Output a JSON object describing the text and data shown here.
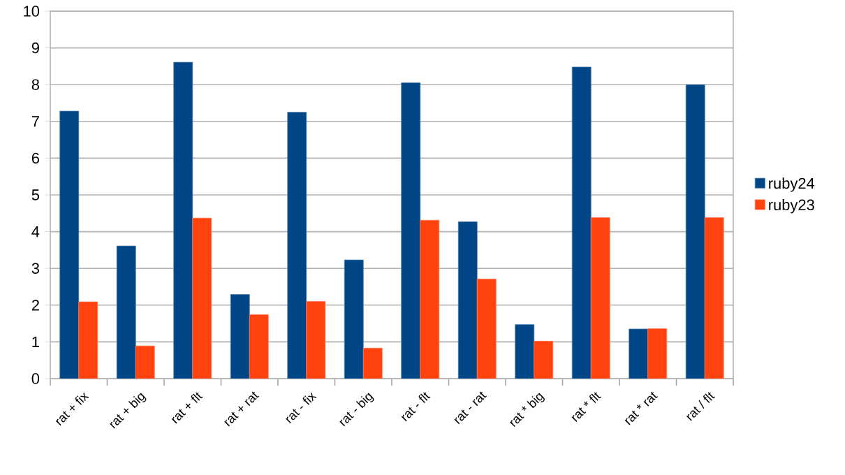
{
  "chart_data": {
    "type": "bar",
    "categories": [
      "rat + fix",
      "rat + big",
      "rat + flt",
      "rat + rat",
      "rat - fix",
      "rat - big",
      "rat - flt",
      "rat - rat",
      "rat * big",
      "rat * flt",
      "rat * rat",
      "rat / flt"
    ],
    "series": [
      {
        "name": "ruby24",
        "color": "#004586",
        "values": [
          7.28,
          3.61,
          8.61,
          2.29,
          7.25,
          3.23,
          8.05,
          4.27,
          1.47,
          8.48,
          1.35,
          8.0
        ]
      },
      {
        "name": "ruby23",
        "color": "#ff420e",
        "values": [
          2.09,
          0.89,
          4.37,
          1.74,
          2.1,
          0.83,
          4.31,
          2.71,
          1.02,
          4.38,
          1.36,
          4.38
        ]
      }
    ],
    "ylim": [
      0,
      10
    ],
    "yticks": [
      0,
      1,
      2,
      3,
      4,
      5,
      6,
      7,
      8,
      9,
      10
    ],
    "grid": "y",
    "legend": "right"
  }
}
